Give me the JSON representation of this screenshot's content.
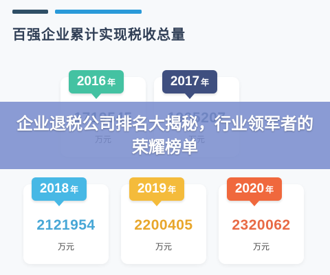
{
  "header": {
    "title": "百强企业累计实现税收总量"
  },
  "cards": [
    {
      "year": "2016",
      "suffix": "年",
      "value": "1719545",
      "unit": "万元",
      "color": "#44c2a2"
    },
    {
      "year": "2017",
      "suffix": "年",
      "value": "1905207",
      "unit": "万元",
      "color": "#3f4f7f"
    },
    {
      "year": "2018",
      "suffix": "年",
      "value": "2121954",
      "unit": "万元",
      "color": "#47b8e5"
    },
    {
      "year": "2019",
      "suffix": "年",
      "value": "2200405",
      "unit": "万元",
      "color": "#f4bb3b"
    },
    {
      "year": "2020",
      "suffix": "年",
      "value": "2320062",
      "unit": "万元",
      "color": "#f0683d"
    }
  ],
  "banner": {
    "text": "企业退税公司排名大揭秘，行业领军者的荣耀榜单"
  }
}
